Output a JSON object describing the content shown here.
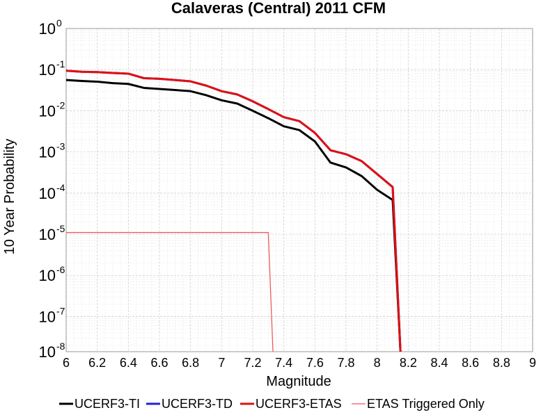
{
  "chart_data": {
    "type": "line",
    "title": "Calaveras (Central) 2011 CFM",
    "xlabel": "Magnitude",
    "ylabel": "10 Year Probability",
    "xlim": [
      6,
      9
    ],
    "ylim": [
      1.4e-08,
      1
    ],
    "yscale": "log",
    "grid": true,
    "legend_position": "bottom",
    "x_ticks": [
      "6",
      "6.2",
      "6.4",
      "6.6",
      "6.8",
      "7",
      "7.2",
      "7.4",
      "7.6",
      "7.8",
      "8",
      "8.2",
      "8.4",
      "8.6",
      "8.8",
      "9"
    ],
    "y_ticks": [
      {
        "base": "10",
        "exp": "0"
      },
      {
        "base": "10",
        "exp": "-1"
      },
      {
        "base": "10",
        "exp": "-2"
      },
      {
        "base": "10",
        "exp": "-3"
      },
      {
        "base": "10",
        "exp": "-4"
      },
      {
        "base": "10",
        "exp": "-5"
      },
      {
        "base": "10",
        "exp": "-6"
      },
      {
        "base": "10",
        "exp": "-7"
      },
      {
        "base": "10",
        "exp": "-8"
      }
    ],
    "series": [
      {
        "name": "UCERF3-TI",
        "color": "#000000",
        "width": 3,
        "x": [
          6.0,
          6.1,
          6.2,
          6.3,
          6.4,
          6.5,
          6.6,
          6.7,
          6.8,
          6.9,
          7.0,
          7.1,
          7.2,
          7.3,
          7.4,
          7.5,
          7.6,
          7.7,
          7.8,
          7.9,
          8.0,
          8.1,
          8.15
        ],
        "y": [
          0.056,
          0.053,
          0.051,
          0.047,
          0.045,
          0.036,
          0.034,
          0.032,
          0.03,
          0.024,
          0.018,
          0.015,
          0.01,
          0.0066,
          0.0042,
          0.0034,
          0.0018,
          0.00055,
          0.00042,
          0.00026,
          0.00012,
          6.8e-05,
          1e-09
        ]
      },
      {
        "name": "UCERF3-TD",
        "color": "#1f1fe0",
        "width": 3,
        "x": [
          6.0,
          6.1,
          6.2,
          6.3,
          6.4,
          6.5,
          6.6,
          6.7,
          6.8,
          6.9,
          7.0,
          7.1,
          7.2,
          7.3,
          7.4,
          7.5,
          7.6,
          7.7,
          7.8,
          7.9,
          8.0,
          8.1,
          8.15
        ],
        "y": [
          0.094,
          0.089,
          0.087,
          0.083,
          0.08,
          0.062,
          0.06,
          0.056,
          0.052,
          0.041,
          0.03,
          0.025,
          0.017,
          0.011,
          0.007,
          0.0056,
          0.0029,
          0.0011,
          0.00088,
          0.0006,
          0.00029,
          0.00014,
          1e-09
        ]
      },
      {
        "name": "UCERF3-ETAS",
        "color": "#e01010",
        "width": 3,
        "x": [
          6.0,
          6.1,
          6.2,
          6.3,
          6.4,
          6.5,
          6.6,
          6.7,
          6.8,
          6.9,
          7.0,
          7.1,
          7.2,
          7.3,
          7.4,
          7.5,
          7.6,
          7.7,
          7.8,
          7.9,
          8.0,
          8.1,
          8.15
        ],
        "y": [
          0.094,
          0.089,
          0.087,
          0.083,
          0.08,
          0.062,
          0.06,
          0.056,
          0.052,
          0.041,
          0.03,
          0.025,
          0.017,
          0.011,
          0.007,
          0.0056,
          0.0029,
          0.0011,
          0.00088,
          0.0006,
          0.00029,
          0.00014,
          1e-09
        ]
      },
      {
        "name": "ETAS Triggered Only",
        "color": "#ef5a5a",
        "width": 1.3,
        "x": [
          6.0,
          7.3,
          7.33
        ],
        "y": [
          1.1e-05,
          1.1e-05,
          1e-09
        ]
      }
    ]
  }
}
